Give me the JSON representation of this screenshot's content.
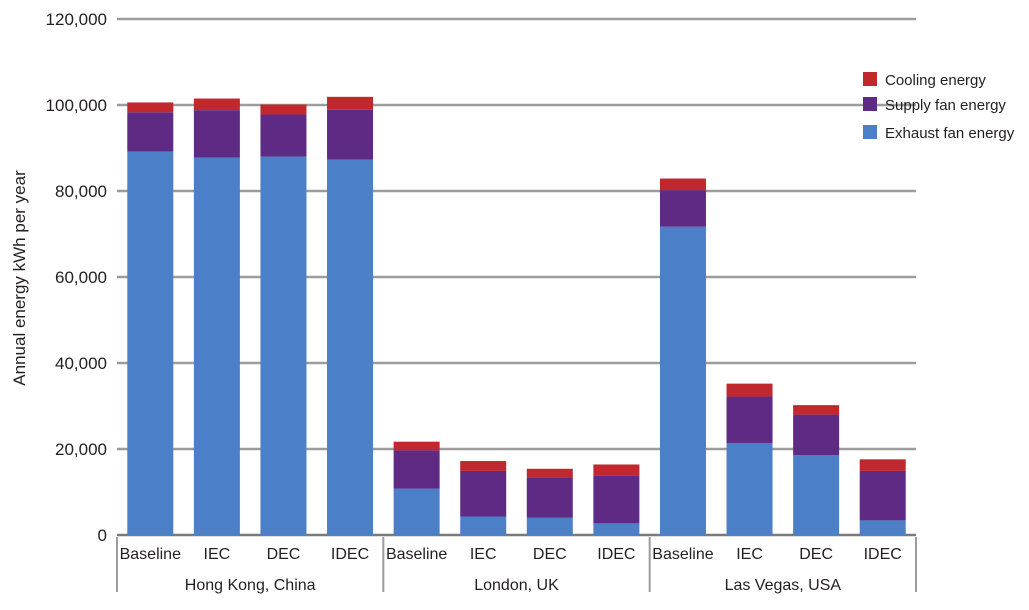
{
  "chart_data": {
    "type": "bar",
    "stacked": true,
    "title": "",
    "ylabel": "Annual energy kWh per year",
    "xlabel": "",
    "ylim": [
      0,
      120000
    ],
    "yticks": [
      "0",
      "20,000",
      "40,000",
      "60,000",
      "80,000",
      "100,000",
      "120,000"
    ],
    "grid": true,
    "legend_position": "top-right",
    "groups": [
      {
        "label": "Hong Kong, China",
        "categories": [
          "Baseline",
          "IEC",
          "DEC",
          "IDEC"
        ]
      },
      {
        "label": "London, UK",
        "categories": [
          "Baseline",
          "IEC",
          "DEC",
          "IDEC"
        ]
      },
      {
        "label": "Las Vegas, USA",
        "categories": [
          "Baseline",
          "IEC",
          "DEC",
          "IDEC"
        ]
      }
    ],
    "series": [
      {
        "name": "Exhaust fan energy",
        "color": "#4b7fc7",
        "values": [
          89200,
          87800,
          88000,
          87300,
          10800,
          4300,
          4000,
          2700,
          71700,
          21400,
          18600,
          3400
        ]
      },
      {
        "name": "Supply fan energy",
        "color": "#5e2a83",
        "values": [
          9100,
          11000,
          9800,
          11600,
          8900,
          10600,
          9400,
          11200,
          8500,
          10800,
          9400,
          11500
        ]
      },
      {
        "name": "Cooling energy",
        "color": "#c0282e",
        "values": [
          2300,
          2700,
          2300,
          3000,
          2000,
          2300,
          2000,
          2500,
          2700,
          3000,
          2200,
          2700
        ]
      }
    ],
    "legend_order": [
      "Cooling energy",
      "Supply fan energy",
      "Exhaust fan energy"
    ]
  }
}
